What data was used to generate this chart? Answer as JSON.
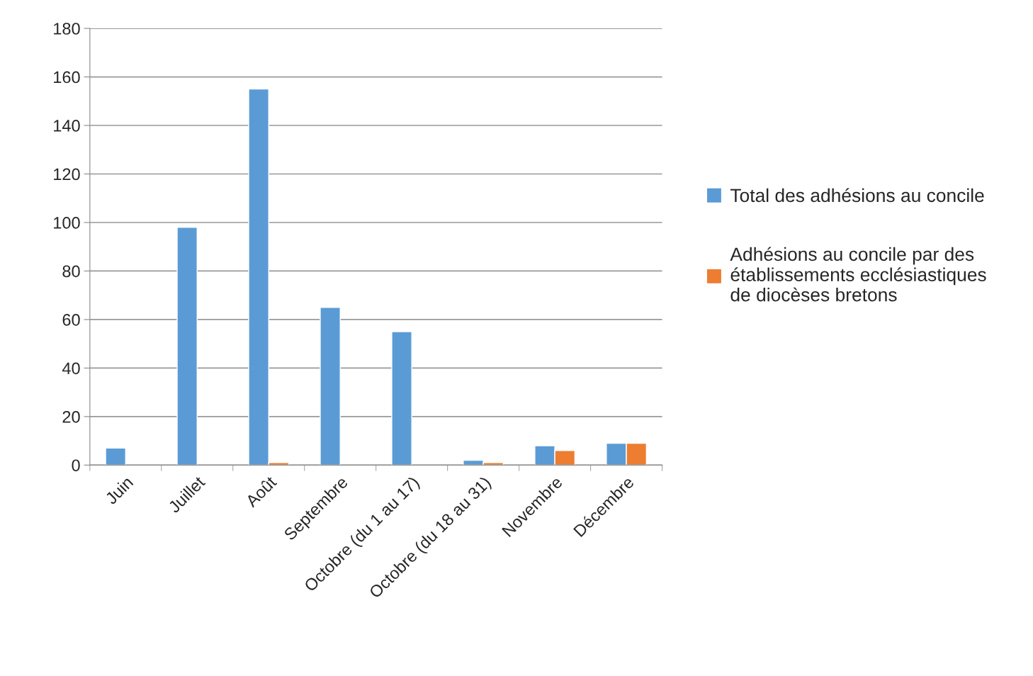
{
  "chart_data": {
    "type": "bar",
    "categories": [
      "Juin",
      "Juillet",
      "Août",
      "Septembre",
      "Octobre (du 1 au 17)",
      "Octobre (du 18 au 31)",
      "Novembre",
      "Décembre"
    ],
    "series": [
      {
        "name": "Total des adhésions au concile",
        "color": "#5b9bd5",
        "values": [
          7,
          98,
          155,
          65,
          55,
          2,
          8,
          9
        ]
      },
      {
        "name": "Adhésions au concile par des\nétablissements ecclésiastiques\nde diocèses bretons",
        "color": "#ed7d31",
        "values": [
          null,
          null,
          1,
          null,
          null,
          1,
          6,
          9
        ]
      }
    ],
    "ylim": [
      0,
      180
    ],
    "yticks": [
      0,
      20,
      40,
      60,
      80,
      100,
      120,
      140,
      160,
      180
    ],
    "grid": "y",
    "legend": "right"
  }
}
